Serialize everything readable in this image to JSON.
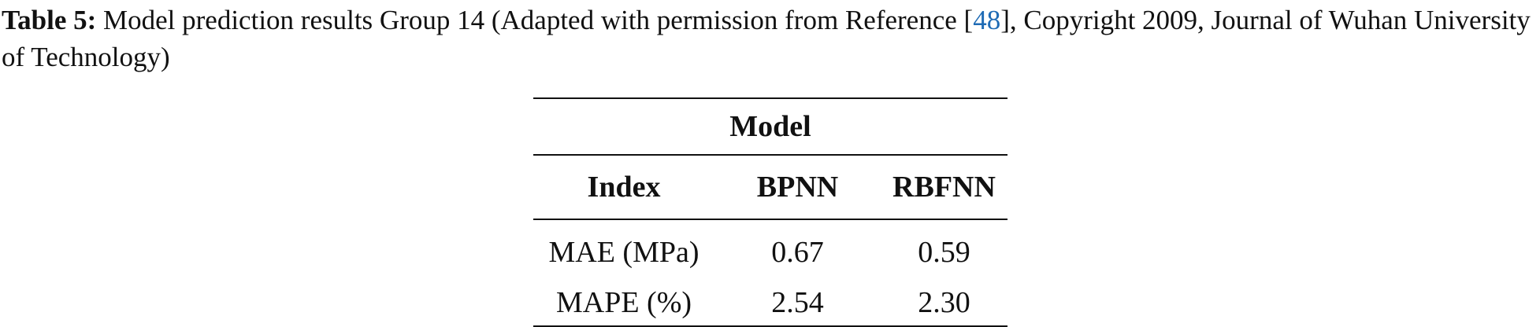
{
  "caption": {
    "label": "Table 5:",
    "text_before": "Model prediction results Group 14 (Adapted with permission from Reference [",
    "ref": "48",
    "text_after": "], Copyright 2009, Journal of Wuhan University of Technology)"
  },
  "table": {
    "group_header": "Model",
    "header": [
      "Index",
      "BPNN",
      "RBFNN"
    ],
    "rows": [
      [
        "MAE (MPa)",
        "0.67",
        "0.59"
      ],
      [
        "MAPE (%)",
        "2.54",
        "2.30"
      ]
    ]
  }
}
